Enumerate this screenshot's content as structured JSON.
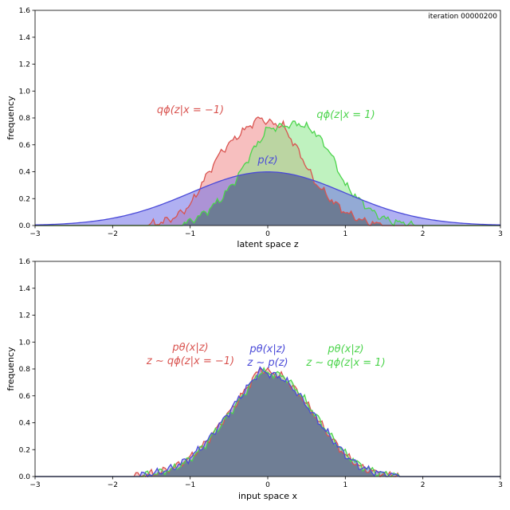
{
  "iteration_label": "iteration 00000200",
  "colors": {
    "red": "#d9534f",
    "red_fill": "#f08a8a",
    "green": "#4cd44c",
    "green_fill": "#8ae88a",
    "blue": "#4a4ad8",
    "blue_fill": "#7070e8",
    "overlap_fill": "#66778c"
  },
  "chart_data": [
    {
      "type": "area",
      "xlabel": "latent space z",
      "ylabel": "frequency",
      "xlim": [
        -3,
        3
      ],
      "ylim": [
        0,
        1.6
      ],
      "xticks": [
        -3,
        -2,
        -1,
        0,
        1,
        2,
        3
      ],
      "yticks": [
        0.0,
        0.2,
        0.4,
        0.6,
        0.8,
        1.0,
        1.2,
        1.4,
        1.6
      ],
      "grid": false,
      "annotations": [
        {
          "text": "qϕ(z|x = −1)",
          "color": "red"
        },
        {
          "text": "qϕ(z|x = 1)",
          "color": "green"
        },
        {
          "text": "p(z)",
          "color": "blue"
        }
      ],
      "series": [
        {
          "color": "red",
          "x": [
            -1.6,
            -1.4,
            -1.2,
            -1.0,
            -0.8,
            -0.6,
            -0.4,
            -0.2,
            -0.1,
            0.0,
            0.2,
            0.4,
            0.6,
            0.8,
            1.0,
            1.2,
            1.4,
            1.6
          ],
          "y": [
            0.0,
            0.02,
            0.06,
            0.15,
            0.36,
            0.55,
            0.66,
            0.76,
            0.8,
            0.77,
            0.74,
            0.55,
            0.33,
            0.2,
            0.1,
            0.04,
            0.01,
            0.0
          ]
        },
        {
          "color": "green",
          "x": [
            -1.2,
            -1.0,
            -0.8,
            -0.6,
            -0.4,
            -0.2,
            0.0,
            0.2,
            0.4,
            0.6,
            0.8,
            1.0,
            1.2,
            1.4,
            1.6,
            1.8,
            2.0
          ],
          "y": [
            0.0,
            0.03,
            0.1,
            0.2,
            0.35,
            0.55,
            0.72,
            0.74,
            0.76,
            0.7,
            0.55,
            0.3,
            0.18,
            0.08,
            0.03,
            0.01,
            0.0
          ]
        },
        {
          "color": "blue",
          "function": "standard normal density"
        }
      ]
    },
    {
      "type": "area",
      "xlabel": "input space x",
      "ylabel": "frequency",
      "xlim": [
        -3,
        3
      ],
      "ylim": [
        0,
        1.6
      ],
      "xticks": [
        -3,
        -2,
        -1,
        0,
        1,
        2,
        3
      ],
      "yticks": [
        0.0,
        0.2,
        0.4,
        0.6,
        0.8,
        1.0,
        1.2,
        1.4,
        1.6
      ],
      "grid": false,
      "annotations": [
        {
          "line1": "pθ(x|z)",
          "line2": "z ∼ qϕ(z|x = −1)",
          "color": "red"
        },
        {
          "line1": "pθ(x|z)",
          "line2": "z ∼ p(z)",
          "color": "blue"
        },
        {
          "line1": "pθ(x|z)",
          "line2": "z ∼ qϕ(z|x = 1)",
          "color": "green"
        }
      ],
      "series": [
        {
          "color": "red",
          "x": [
            -1.8,
            -1.6,
            -1.4,
            -1.2,
            -1.0,
            -0.8,
            -0.6,
            -0.4,
            -0.2,
            -0.1,
            0.0,
            0.2,
            0.4,
            0.6,
            0.8,
            1.0,
            1.2,
            1.4,
            1.6,
            1.8
          ],
          "y": [
            0.0,
            0.01,
            0.03,
            0.07,
            0.14,
            0.25,
            0.4,
            0.55,
            0.72,
            0.8,
            0.78,
            0.74,
            0.62,
            0.46,
            0.3,
            0.16,
            0.07,
            0.03,
            0.01,
            0.0
          ]
        },
        {
          "color": "green",
          "x": [
            -1.8,
            -1.6,
            -1.4,
            -1.2,
            -1.0,
            -0.8,
            -0.6,
            -0.4,
            -0.2,
            -0.1,
            0.0,
            0.2,
            0.4,
            0.6,
            0.8,
            1.0,
            1.2,
            1.4,
            1.6,
            1.8
          ],
          "y": [
            0.0,
            0.01,
            0.03,
            0.06,
            0.13,
            0.24,
            0.39,
            0.54,
            0.7,
            0.78,
            0.77,
            0.75,
            0.63,
            0.47,
            0.31,
            0.17,
            0.08,
            0.03,
            0.01,
            0.0
          ]
        },
        {
          "color": "blue",
          "x": [
            -1.8,
            -1.6,
            -1.4,
            -1.2,
            -1.0,
            -0.8,
            -0.6,
            -0.4,
            -0.2,
            -0.1,
            0.0,
            0.2,
            0.4,
            0.6,
            0.8,
            1.0,
            1.2,
            1.4,
            1.6,
            1.8
          ],
          "y": [
            0.0,
            0.01,
            0.03,
            0.07,
            0.14,
            0.25,
            0.4,
            0.56,
            0.71,
            0.79,
            0.77,
            0.73,
            0.61,
            0.45,
            0.3,
            0.16,
            0.07,
            0.03,
            0.01,
            0.0
          ]
        }
      ]
    }
  ]
}
